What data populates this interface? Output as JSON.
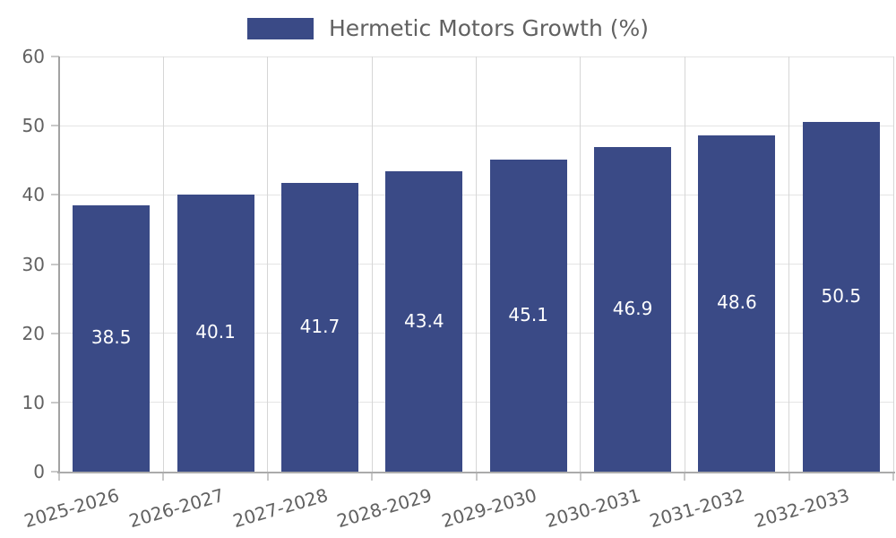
{
  "legend": {
    "label": "Hermetic Motors Growth (%)"
  },
  "chart_data": {
    "type": "bar",
    "title": "",
    "xlabel": "",
    "ylabel": "",
    "categories": [
      "2025-2026",
      "2026-2027",
      "2027-2028",
      "2028-2029",
      "2029-2030",
      "2030-2031",
      "2031-2032",
      "2032-2033"
    ],
    "series": [
      {
        "name": "Hermetic Motors Growth (%)",
        "values": [
          38.5,
          40.1,
          41.7,
          43.4,
          45.1,
          46.9,
          48.6,
          50.5
        ],
        "labels": [
          "38.5",
          "40.1",
          "41.7",
          "43.4",
          "45.1",
          "46.9",
          "48.6",
          "50.5"
        ],
        "color": "#3A4A86"
      }
    ],
    "ylim": [
      0,
      60
    ],
    "yticks": [
      0,
      10,
      20,
      30,
      40,
      50,
      60
    ],
    "grid": true,
    "legend_position": "top-center",
    "bar_value_label_color": "#FFFFFF",
    "axis_text_color": "#616161"
  }
}
